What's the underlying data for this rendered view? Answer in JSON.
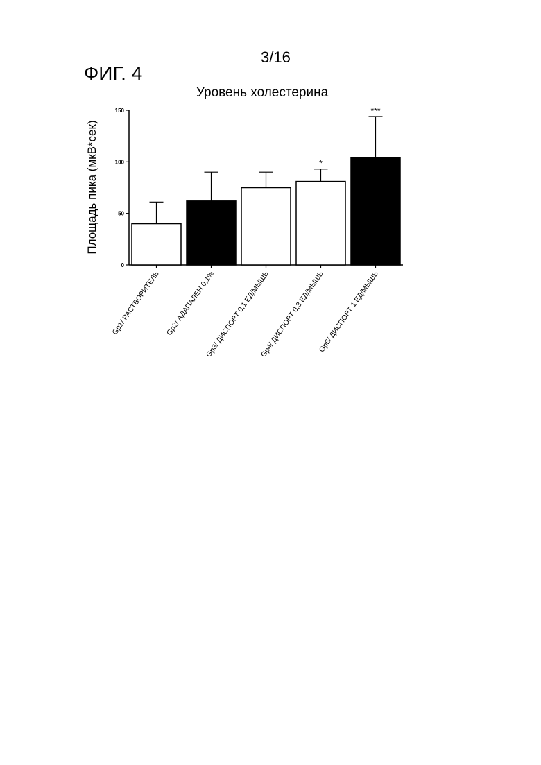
{
  "page": {
    "number": "3/16",
    "figure": "ФИГ. 4"
  },
  "colors": {
    "ink": "#000000",
    "open_bar": "#ffffff",
    "filled_bar": "#000000"
  },
  "chart_data": {
    "type": "bar",
    "title": "Уровень холестерина",
    "ylabel": "Площадь пика (мкВ*сек)",
    "xlabel": "",
    "ylim": [
      0,
      150
    ],
    "yticks": [
      0,
      50,
      100,
      150
    ],
    "grid": false,
    "categories": [
      "Gp1/ РАСТВОРИТЕЛЬ",
      "Gp2/ АДАПАЛЕН 0,1%",
      "Gp3/ ДИСПОРТ 0,1 ЕД/МЫШЬ",
      "Gp4/ ДИСПОРТ 0,3 ЕД/МЫШЬ",
      "Gp5/ ДИСПОРТ 1 ЕД/МЫШЬ"
    ],
    "values": [
      40,
      62,
      75,
      81,
      104
    ],
    "error_upper": [
      21,
      28,
      15,
      12,
      40
    ],
    "fill": [
      "open",
      "filled",
      "open",
      "open",
      "filled"
    ],
    "significance": [
      "",
      "",
      "",
      "*",
      "***"
    ]
  }
}
